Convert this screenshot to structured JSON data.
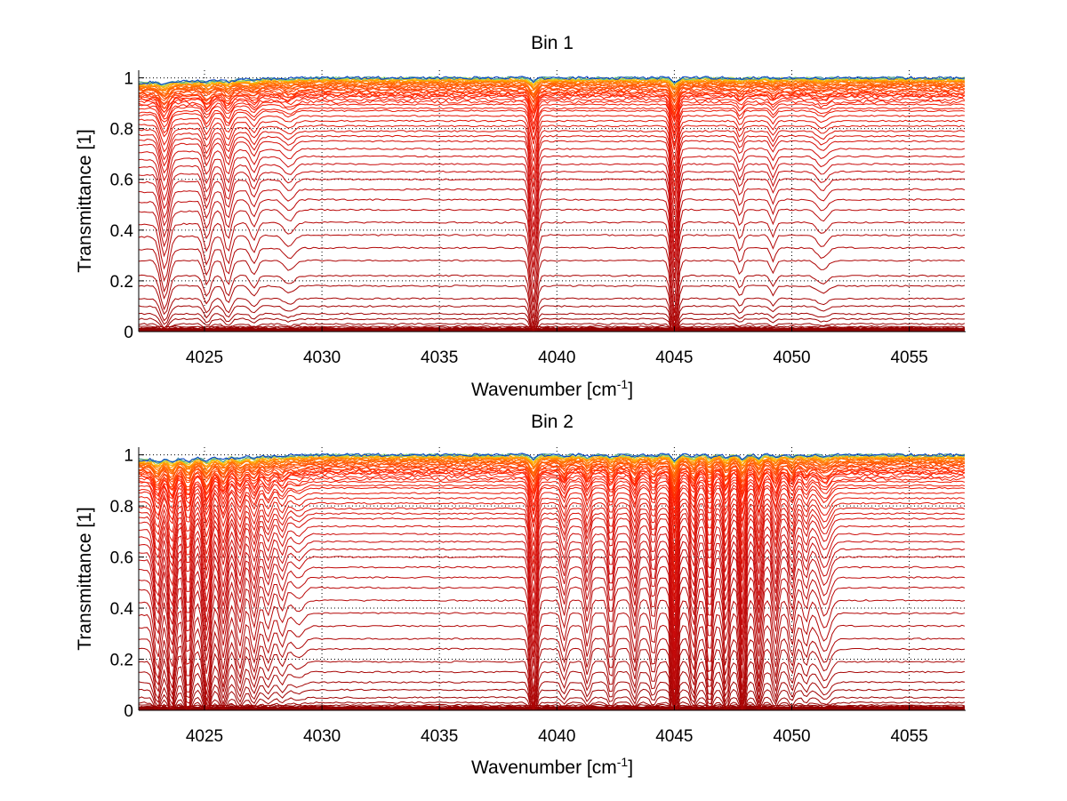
{
  "chart_data": [
    {
      "type": "line",
      "title": "Bin 1",
      "xlabel": "Wavenumber [cm",
      "xlabel_sup": "-1",
      "xlabel_end": "]",
      "ylabel": "Transmittance [1]",
      "xlim": [
        4022.2,
        4057.4
      ],
      "ylim": [
        0,
        1.03
      ],
      "xticks": [
        4025,
        4030,
        4035,
        4040,
        4045,
        4050,
        4055
      ],
      "xtick_labels": [
        "4025",
        "4030",
        "4035",
        "4040",
        "4045",
        "4050",
        "4055"
      ],
      "yticks": [
        0,
        0.2,
        0.4,
        0.6,
        0.8,
        1
      ],
      "ytick_labels": [
        "0",
        "0.2",
        "0.4",
        "0.6",
        "0.8",
        "1"
      ],
      "grid": true,
      "n_series": 60,
      "series_baselines": [
        0.0,
        0.005,
        0.01,
        0.015,
        0.02,
        0.03,
        0.05,
        0.07,
        0.1,
        0.13,
        0.18,
        0.22,
        0.28,
        0.33,
        0.38,
        0.43,
        0.48,
        0.52,
        0.56,
        0.6,
        0.63,
        0.66,
        0.69,
        0.72,
        0.75,
        0.77,
        0.79,
        0.81,
        0.83,
        0.85,
        0.87,
        0.88,
        0.895,
        0.905,
        0.915,
        0.925,
        0.93,
        0.935,
        0.94,
        0.945,
        0.95,
        0.955,
        0.96,
        0.965,
        0.968,
        0.971,
        0.974,
        0.977,
        0.98,
        0.983,
        0.985,
        0.987,
        0.989,
        0.991,
        0.993,
        0.995,
        0.997,
        0.998,
        0.999,
        1.0
      ],
      "absorption_lines": [
        {
          "x": 4023.3,
          "depth": 0.08,
          "width": 0.25
        },
        {
          "x": 4025.1,
          "depth": 0.05,
          "width": 0.2
        },
        {
          "x": 4026.0,
          "depth": 0.05,
          "width": 0.2
        },
        {
          "x": 4027.1,
          "depth": 0.03,
          "width": 0.2
        },
        {
          "x": 4028.6,
          "depth": 0.02,
          "width": 0.3
        },
        {
          "x": 4039.0,
          "depth": 0.12,
          "width": 0.18
        },
        {
          "x": 4045.0,
          "depth": 0.14,
          "width": 0.18
        },
        {
          "x": 4047.8,
          "depth": 0.03,
          "width": 0.15
        },
        {
          "x": 4049.2,
          "depth": 0.025,
          "width": 0.15
        },
        {
          "x": 4051.3,
          "depth": 0.02,
          "width": 0.3
        }
      ]
    },
    {
      "type": "line",
      "title": "Bin 2",
      "xlabel": "Wavenumber [cm",
      "xlabel_sup": "-1",
      "xlabel_end": "]",
      "ylabel": "Transmittance [1]",
      "xlim": [
        4022.2,
        4057.4
      ],
      "ylim": [
        0,
        1.03
      ],
      "xticks": [
        4025,
        4030,
        4035,
        4040,
        4045,
        4050,
        4055
      ],
      "xtick_labels": [
        "4025",
        "4030",
        "4035",
        "4040",
        "4045",
        "4050",
        "4055"
      ],
      "yticks": [
        0,
        0.2,
        0.4,
        0.6,
        0.8,
        1
      ],
      "ytick_labels": [
        "0",
        "0.2",
        "0.4",
        "0.6",
        "0.8",
        "1"
      ],
      "grid": true,
      "n_series": 60,
      "series_baselines": [
        0.0,
        0.005,
        0.01,
        0.015,
        0.02,
        0.03,
        0.05,
        0.08,
        0.11,
        0.15,
        0.19,
        0.24,
        0.28,
        0.33,
        0.38,
        0.43,
        0.48,
        0.52,
        0.56,
        0.6,
        0.63,
        0.66,
        0.69,
        0.72,
        0.75,
        0.77,
        0.79,
        0.81,
        0.83,
        0.85,
        0.87,
        0.88,
        0.895,
        0.905,
        0.915,
        0.925,
        0.93,
        0.935,
        0.94,
        0.945,
        0.95,
        0.955,
        0.96,
        0.965,
        0.968,
        0.971,
        0.974,
        0.977,
        0.98,
        0.983,
        0.985,
        0.987,
        0.989,
        0.991,
        0.993,
        0.995,
        0.997,
        0.998,
        0.999,
        1.0
      ],
      "absorption_lines": [
        {
          "x": 4023.0,
          "depth": 0.1,
          "width": 0.2
        },
        {
          "x": 4023.6,
          "depth": 0.12,
          "width": 0.2
        },
        {
          "x": 4024.3,
          "depth": 0.12,
          "width": 0.2
        },
        {
          "x": 4025.1,
          "depth": 0.13,
          "width": 0.2
        },
        {
          "x": 4025.8,
          "depth": 0.1,
          "width": 0.2
        },
        {
          "x": 4026.5,
          "depth": 0.08,
          "width": 0.2
        },
        {
          "x": 4027.1,
          "depth": 0.07,
          "width": 0.2
        },
        {
          "x": 4027.7,
          "depth": 0.05,
          "width": 0.2
        },
        {
          "x": 4028.3,
          "depth": 0.04,
          "width": 0.2
        },
        {
          "x": 4029.0,
          "depth": 0.02,
          "width": 0.3
        },
        {
          "x": 4039.0,
          "depth": 0.14,
          "width": 0.18
        },
        {
          "x": 4040.3,
          "depth": 0.05,
          "width": 0.15
        },
        {
          "x": 4041.3,
          "depth": 0.06,
          "width": 0.15
        },
        {
          "x": 4042.3,
          "depth": 0.07,
          "width": 0.15
        },
        {
          "x": 4043.3,
          "depth": 0.07,
          "width": 0.15
        },
        {
          "x": 4044.1,
          "depth": 0.06,
          "width": 0.15
        },
        {
          "x": 4045.0,
          "depth": 0.18,
          "width": 0.15
        },
        {
          "x": 4045.8,
          "depth": 0.09,
          "width": 0.15
        },
        {
          "x": 4046.5,
          "depth": 0.1,
          "width": 0.15
        },
        {
          "x": 4047.2,
          "depth": 0.1,
          "width": 0.15
        },
        {
          "x": 4047.9,
          "depth": 0.14,
          "width": 0.15
        },
        {
          "x": 4048.6,
          "depth": 0.1,
          "width": 0.15
        },
        {
          "x": 4049.3,
          "depth": 0.08,
          "width": 0.15
        },
        {
          "x": 4050.0,
          "depth": 0.06,
          "width": 0.15
        },
        {
          "x": 4050.6,
          "depth": 0.04,
          "width": 0.15
        },
        {
          "x": 4051.4,
          "depth": 0.05,
          "width": 0.3
        }
      ]
    }
  ],
  "colors": {
    "low_series": "#8b0000",
    "mid_series": "#ff1a00",
    "high_series": "#ff9900",
    "top_series": "#0033cc",
    "grid": "#000000"
  }
}
